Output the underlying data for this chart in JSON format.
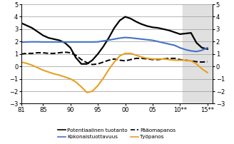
{
  "title": "",
  "xlim": [
    1981,
    2016
  ],
  "ylim": [
    -3,
    5
  ],
  "yticks": [
    -3,
    -2,
    -1,
    0,
    1,
    2,
    3,
    4,
    5
  ],
  "xtick_labels": [
    "81",
    "85",
    "90",
    "95",
    "00",
    "05",
    "10**",
    "15**"
  ],
  "xtick_positions": [
    1981,
    1985,
    1990,
    1995,
    2000,
    2005,
    2010,
    2015
  ],
  "shade_start": 2010.5,
  "shade_end": 2016,
  "background_color": "#ffffff",
  "grid_color": "#999999",
  "series": {
    "potential": {
      "color": "#000000",
      "linestyle": "solid",
      "linewidth": 1.6,
      "x": [
        1981,
        1982,
        1983,
        1984,
        1985,
        1986,
        1987,
        1988,
        1989,
        1990,
        1991,
        1992,
        1993,
        1994,
        1995,
        1996,
        1997,
        1998,
        1999,
        2000,
        2001,
        2002,
        2003,
        2004,
        2005,
        2006,
        2007,
        2008,
        2009,
        2010,
        2011,
        2012,
        2013,
        2014,
        2015
      ],
      "y": [
        3.5,
        3.3,
        3.1,
        2.8,
        2.5,
        2.3,
        2.2,
        2.1,
        1.9,
        1.5,
        0.7,
        0.2,
        0.2,
        0.5,
        1.0,
        1.6,
        2.3,
        3.1,
        3.7,
        4.0,
        3.85,
        3.6,
        3.4,
        3.25,
        3.15,
        3.1,
        3.0,
        2.9,
        2.75,
        2.6,
        2.65,
        2.7,
        1.9,
        1.5,
        1.4
      ]
    },
    "tfp": {
      "color": "#4472c4",
      "linestyle": "solid",
      "linewidth": 1.5,
      "x": [
        1981,
        1982,
        1983,
        1984,
        1985,
        1986,
        1987,
        1988,
        1989,
        1990,
        1991,
        1992,
        1993,
        1994,
        1995,
        1996,
        1997,
        1998,
        1999,
        2000,
        2001,
        2002,
        2003,
        2004,
        2005,
        2006,
        2007,
        2008,
        2009,
        2010,
        2011,
        2012,
        2013,
        2014,
        2015
      ],
      "y": [
        1.95,
        1.97,
        1.98,
        1.98,
        1.97,
        1.97,
        1.97,
        1.97,
        1.97,
        1.97,
        1.97,
        1.97,
        1.97,
        1.97,
        1.98,
        2.05,
        2.12,
        2.2,
        2.28,
        2.33,
        2.3,
        2.25,
        2.2,
        2.15,
        2.1,
        2.0,
        1.9,
        1.8,
        1.7,
        1.5,
        1.35,
        1.25,
        1.2,
        1.3,
        1.5
      ]
    },
    "capital": {
      "color": "#000000",
      "linestyle": "dashed",
      "linewidth": 1.4,
      "x": [
        1981,
        1982,
        1983,
        1984,
        1985,
        1986,
        1987,
        1988,
        1989,
        1990,
        1991,
        1992,
        1993,
        1994,
        1995,
        1996,
        1997,
        1998,
        1999,
        2000,
        2001,
        2002,
        2003,
        2004,
        2005,
        2006,
        2007,
        2008,
        2009,
        2010,
        2011,
        2012,
        2013,
        2014,
        2015
      ],
      "y": [
        1.0,
        1.05,
        1.05,
        1.1,
        1.1,
        1.05,
        1.05,
        1.1,
        1.15,
        1.1,
        0.9,
        0.55,
        0.3,
        0.15,
        0.2,
        0.35,
        0.5,
        0.6,
        0.5,
        0.45,
        0.55,
        0.65,
        0.65,
        0.6,
        0.55,
        0.55,
        0.6,
        0.65,
        0.65,
        0.55,
        0.5,
        0.45,
        0.38,
        0.35,
        0.38
      ]
    },
    "labor": {
      "color": "#e8a020",
      "linestyle": "solid",
      "linewidth": 1.5,
      "x": [
        1981,
        1982,
        1983,
        1984,
        1985,
        1986,
        1987,
        1988,
        1989,
        1990,
        1991,
        1992,
        1993,
        1994,
        1995,
        1996,
        1997,
        1998,
        1999,
        2000,
        2001,
        2002,
        2003,
        2004,
        2005,
        2006,
        2007,
        2008,
        2009,
        2010,
        2011,
        2012,
        2013,
        2014,
        2015
      ],
      "y": [
        0.35,
        0.25,
        0.1,
        -0.1,
        -0.3,
        -0.45,
        -0.6,
        -0.7,
        -0.85,
        -1.0,
        -1.25,
        -1.65,
        -2.1,
        -2.0,
        -1.55,
        -0.95,
        -0.25,
        0.35,
        0.85,
        1.05,
        1.05,
        0.9,
        0.75,
        0.65,
        0.6,
        0.6,
        0.6,
        0.55,
        0.5,
        0.5,
        0.5,
        0.45,
        0.2,
        -0.2,
        -0.5
      ]
    }
  },
  "legend": [
    {
      "label": "Potentiaalinen tuotanto",
      "color": "#000000",
      "linestyle": "solid"
    },
    {
      "label": "Kokonaistuottavuus",
      "color": "#4472c4",
      "linestyle": "solid"
    },
    {
      "label": "Pääomapanos",
      "color": "#000000",
      "linestyle": "dashed"
    },
    {
      "label": "Työpanos",
      "color": "#e8a020",
      "linestyle": "solid"
    }
  ]
}
